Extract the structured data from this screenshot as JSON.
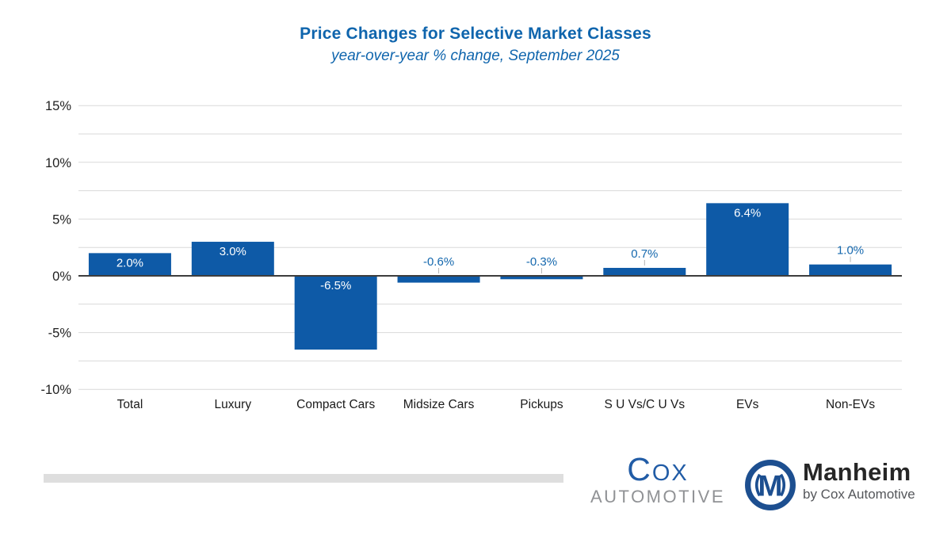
{
  "header": {
    "title": "Price Changes for Selective Market Classes",
    "subtitle": "year-over-year % change, September 2025"
  },
  "chart_data": {
    "type": "bar",
    "title": "Price Changes for Selective Market Classes",
    "subtitle": "year-over-year % change, September 2025",
    "categories": [
      "Total",
      "Luxury",
      "Compact Cars",
      "Midsize Cars",
      "Pickups",
      "S U Vs/C U Vs",
      "EVs",
      "Non-EVs"
    ],
    "values": [
      2.0,
      3.0,
      -6.5,
      -0.6,
      -0.3,
      0.7,
      6.4,
      1.0
    ],
    "labels": [
      "2.0%",
      "3.0%",
      "-6.5%",
      "-0.6%",
      "-0.3%",
      "0.7%",
      "6.4%",
      "1.0%"
    ],
    "xlabel": "",
    "ylabel": "",
    "ylim": [
      -10,
      15
    ],
    "grid_step": 2.5,
    "grid": true,
    "legend": "none",
    "yticks": [
      {
        "v": 15,
        "label": "15%"
      },
      {
        "v": 10,
        "label": "10%"
      },
      {
        "v": 5,
        "label": "5%"
      },
      {
        "v": 0,
        "label": "0%"
      },
      {
        "v": -5,
        "label": "-5%"
      },
      {
        "v": -10,
        "label": "-10%"
      }
    ]
  },
  "colors": {
    "bar": "#0e5aa7",
    "title_blue": "#0f65ad",
    "label_inside": "#ffffff",
    "label_outside": "#1568ae",
    "axis": "#3d3d3d",
    "grid": "#d9d9d9",
    "leader": "#b3b3b3",
    "tick_text": "#1f1f1f",
    "category_text": "#1a1a1a",
    "divider": "#dedede",
    "cox_blue": "#215ca6",
    "cox_gray": "#909295",
    "manheim_blue": "#1d4f90",
    "manheim_dark": "#262626",
    "manheim_gray": "#55575b"
  },
  "footer": {
    "cox": {
      "word": "Cox",
      "sub": "AUTOMOTIVE"
    },
    "manheim": {
      "monogram": "M",
      "name": "Manheim",
      "tagline": "by Cox Automotive"
    }
  }
}
